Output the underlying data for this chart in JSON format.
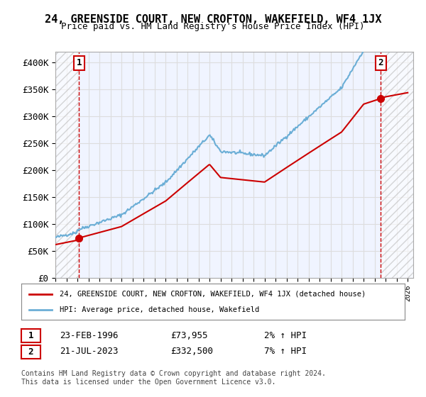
{
  "title": "24, GREENSIDE COURT, NEW CROFTON, WAKEFIELD, WF4 1JX",
  "subtitle": "Price paid vs. HM Land Registry's House Price Index (HPI)",
  "ylabel_ticks": [
    "£0",
    "£50K",
    "£100K",
    "£150K",
    "£200K",
    "£250K",
    "£300K",
    "£350K",
    "£400K"
  ],
  "ytick_values": [
    0,
    50000,
    100000,
    150000,
    200000,
    250000,
    300000,
    350000,
    400000
  ],
  "ylim": [
    0,
    420000
  ],
  "xlim_start": 1994.0,
  "xlim_end": 2026.5,
  "hpi_color": "#6baed6",
  "price_color": "#cc0000",
  "sale1_year": 1996.14,
  "sale1_price": 73955,
  "sale2_year": 2023.54,
  "sale2_price": 332500,
  "legend_label1": "24, GREENSIDE COURT, NEW CROFTON, WAKEFIELD, WF4 1JX (detached house)",
  "legend_label2": "HPI: Average price, detached house, Wakefield",
  "table_row1": [
    "1",
    "23-FEB-1996",
    "£73,955",
    "2% ↑ HPI"
  ],
  "table_row2": [
    "2",
    "21-JUL-2023",
    "£332,500",
    "7% ↑ HPI"
  ],
  "footer": "Contains HM Land Registry data © Crown copyright and database right 2024.\nThis data is licensed under the Open Government Licence v3.0.",
  "bg_color": "#f0f4ff",
  "grid_color": "#dddddd",
  "dashed_color": "#cc0000"
}
